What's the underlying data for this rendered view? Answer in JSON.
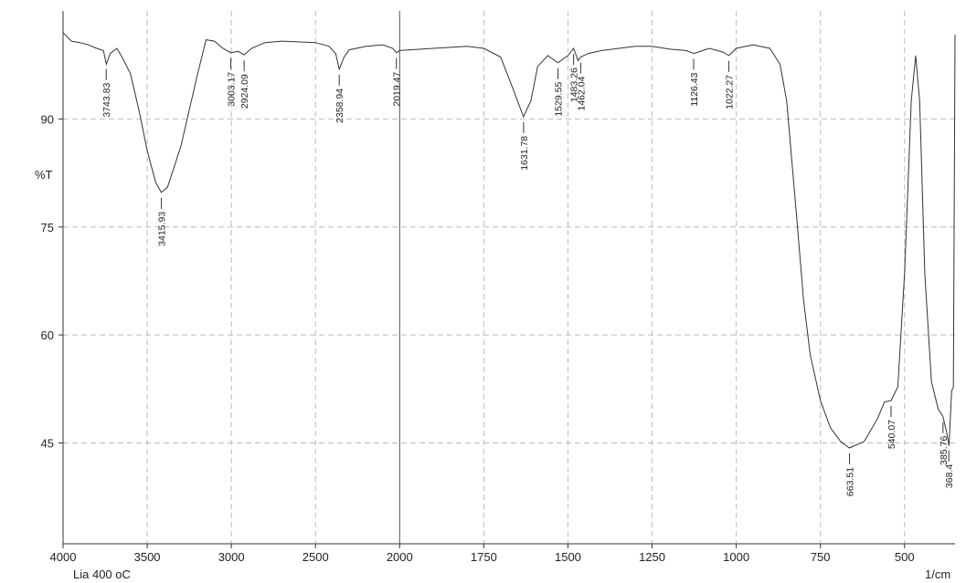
{
  "chart_data": {
    "type": "line",
    "y_label": "%T",
    "x_label": "1/cm",
    "sample": "Lia 400 oC",
    "xlim": [
      4000,
      350
    ],
    "x_scale_break": 2000,
    "x_scale_factor_after_break": 2,
    "xticks": [
      4000,
      3500,
      3000,
      2500,
      2000,
      1750,
      1500,
      1250,
      1000,
      750,
      500
    ],
    "ylim": [
      31,
      105
    ],
    "yticks": [
      45,
      60,
      75,
      90
    ],
    "grid": true,
    "color": "#333333",
    "x": [
      4000,
      3950,
      3900,
      3850,
      3800,
      3760,
      3743,
      3720,
      3680,
      3650,
      3600,
      3550,
      3500,
      3450,
      3416,
      3380,
      3300,
      3200,
      3150,
      3100,
      3050,
      3003,
      2960,
      2924,
      2880,
      2800,
      2700,
      2600,
      2500,
      2420,
      2380,
      2359,
      2330,
      2300,
      2200,
      2100,
      2040,
      2019,
      2000,
      1900,
      1800,
      1750,
      1700,
      1660,
      1632,
      1610,
      1590,
      1560,
      1530,
      1500,
      1483,
      1470,
      1462,
      1440,
      1400,
      1300,
      1250,
      1200,
      1150,
      1126,
      1080,
      1040,
      1022,
      1000,
      950,
      900,
      870,
      850,
      820,
      800,
      780,
      750,
      720,
      690,
      664,
      620,
      580,
      560,
      540,
      520,
      500,
      480,
      467,
      455,
      440,
      420,
      400,
      386,
      375,
      368,
      360,
      355,
      350
    ],
    "values": [
      102.0,
      100.8,
      100.6,
      100.3,
      99.8,
      99.5,
      97.6,
      99.1,
      99.8,
      98.6,
      96.3,
      91.3,
      85.6,
      81.2,
      79.8,
      80.5,
      86.2,
      96.3,
      101.0,
      100.8,
      99.8,
      99.2,
      99.4,
      98.9,
      99.8,
      100.6,
      100.8,
      100.7,
      100.6,
      100.1,
      99.1,
      96.9,
      98.6,
      99.6,
      100.1,
      100.3,
      99.8,
      99.2,
      99.5,
      99.8,
      100.1,
      99.8,
      98.6,
      93.8,
      90.3,
      92.5,
      97.3,
      98.8,
      97.8,
      98.8,
      99.8,
      98.1,
      98.6,
      99.1,
      99.5,
      100.1,
      100.1,
      99.7,
      99.5,
      99.1,
      99.8,
      99.3,
      98.8,
      99.8,
      100.3,
      99.8,
      97.6,
      92.5,
      76.1,
      64.8,
      57.2,
      50.9,
      47.1,
      45.2,
      44.3,
      45.2,
      48.4,
      50.7,
      50.9,
      52.8,
      68.6,
      92.5,
      98.8,
      92.5,
      68.6,
      53.5,
      49.7,
      48.7,
      46.5,
      44.6,
      52.2,
      52.8,
      101.7
    ],
    "peaks": [
      3743.83,
      3415.93,
      3003.17,
      2924.09,
      2358.94,
      2019.47,
      1631.78,
      1529.55,
      1483.26,
      1462.04,
      1126.43,
      1022.27,
      663.51,
      540.07,
      385.76,
      368.4
    ]
  }
}
